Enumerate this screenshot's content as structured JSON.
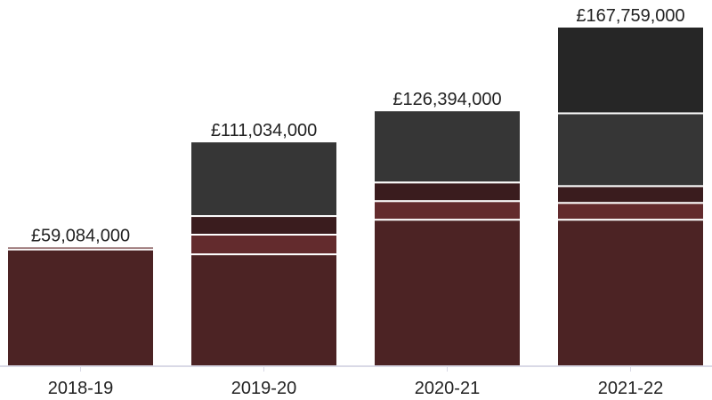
{
  "chart_data": {
    "type": "bar",
    "stacked": true,
    "categories": [
      "2018-19",
      "2019-20",
      "2020-21",
      "2021-22"
    ],
    "totals": [
      59084000,
      111034000,
      126394000,
      167759000
    ],
    "total_labels": [
      "£59,084,000",
      "£111,034,000",
      "£126,394,000",
      "£167,759,000"
    ],
    "series": [
      {
        "color": "#4c2324",
        "values": [
          57700000,
          55300000,
          72400000,
          72400000
        ]
      },
      {
        "color": "#632b2d",
        "values": [
          1384000,
          9700000,
          9200000,
          8300000
        ]
      },
      {
        "color": "#3a1c1e",
        "values": [
          0,
          9200000,
          9200000,
          8300000
        ]
      },
      {
        "color": "#363636",
        "values": [
          0,
          36834000,
          35594000,
          35959000
        ]
      },
      {
        "color": "#262626",
        "values": [
          0,
          0,
          0,
          42800000
        ]
      }
    ],
    "ylim": [
      0,
      167759000
    ],
    "grid": false,
    "legend": "none"
  }
}
